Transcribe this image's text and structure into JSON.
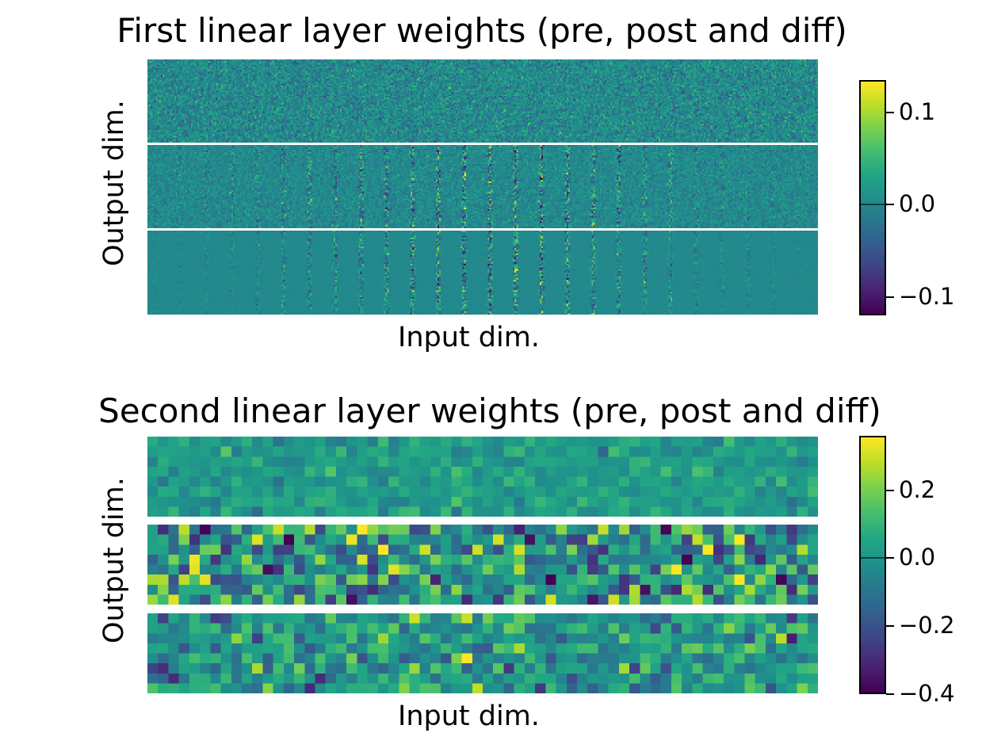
{
  "chart_data": [
    {
      "type": "heatmap",
      "title": "First linear layer weights (pre, post and diff)",
      "xlabel": "Input dim.",
      "ylabel": "Output dim.",
      "panels": [
        "pre",
        "post",
        "diff"
      ],
      "colormap": "viridis",
      "grid_cols": 400,
      "grid_rows_per_panel": 48,
      "panel_spread": [
        0.022,
        0.03,
        0.028
      ],
      "panel_center": [
        0.0,
        0.0,
        0.0
      ],
      "vmin": -0.12,
      "vmax": 0.135,
      "colorbar_ticks": [
        0.1,
        0.0,
        -0.1
      ],
      "colorbar_labels": [
        "0.1",
        "0.0",
        "−0.1"
      ],
      "colorbar_mark": 0.0,
      "grid": false,
      "legend": "none"
    },
    {
      "type": "heatmap",
      "title": "Second linear layer weights (pre, post and diff)",
      "xlabel": "Input dim.",
      "ylabel": "Output dim.",
      "panels": [
        "pre",
        "post",
        "diff"
      ],
      "colormap": "viridis",
      "grid_cols": 64,
      "grid_rows_per_panel": 8,
      "panel_spread": [
        0.05,
        0.17,
        0.11
      ],
      "panel_center": [
        0.02,
        0.0,
        0.0
      ],
      "vmin": -0.4,
      "vmax": 0.36,
      "colorbar_ticks": [
        0.2,
        0.0,
        -0.2,
        -0.4
      ],
      "colorbar_labels": [
        "0.2",
        "0.0",
        "−0.2",
        "−0.4"
      ],
      "colorbar_mark": 0.0,
      "grid": false,
      "legend": "none"
    }
  ]
}
